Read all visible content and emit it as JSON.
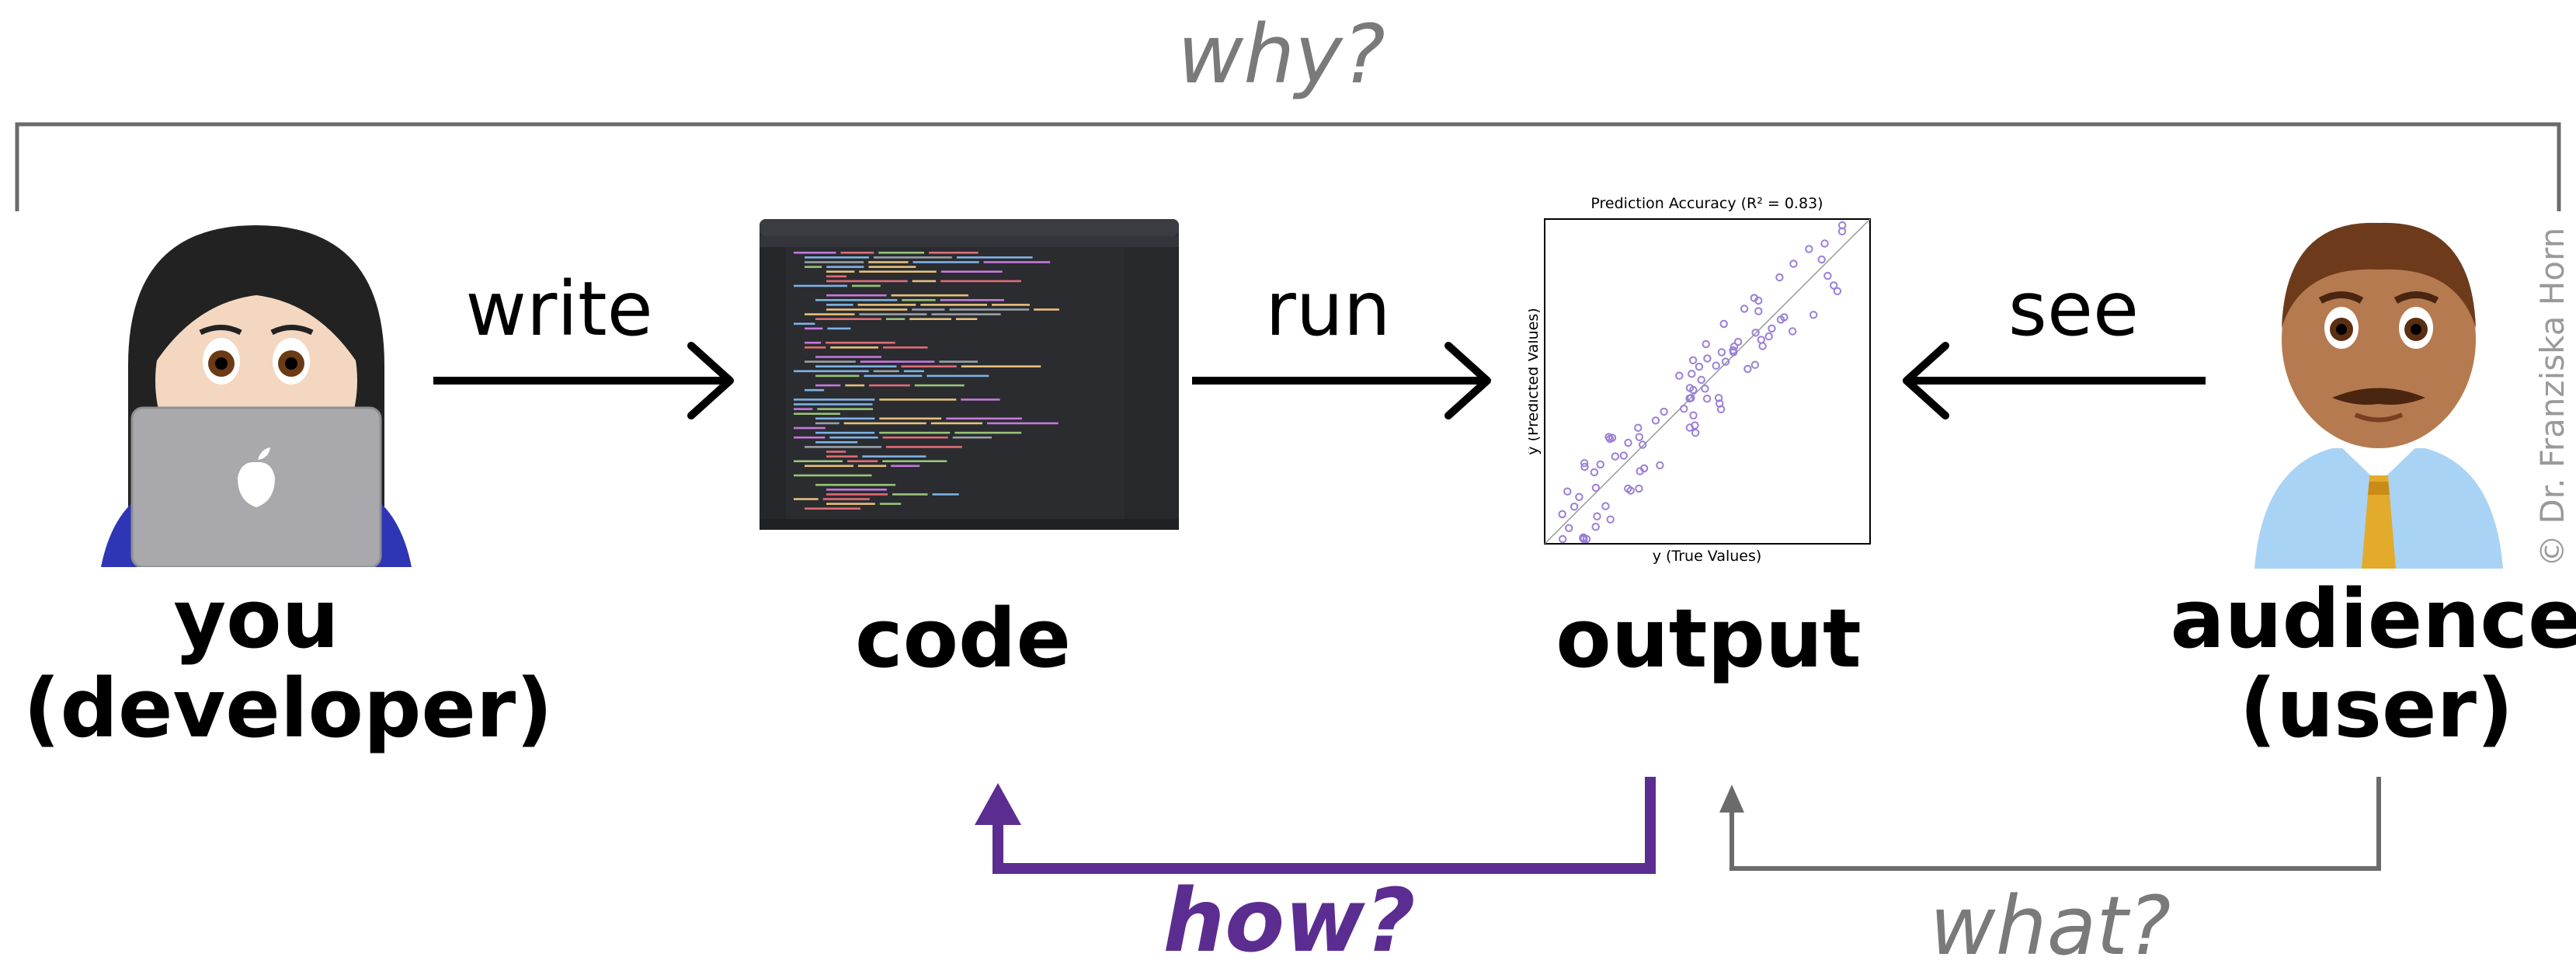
{
  "top_question": "why?",
  "bottom_left_question": "how?",
  "bottom_right_question": "what?",
  "nodes": {
    "developer": {
      "line1": "you",
      "line2": "(developer)"
    },
    "code": {
      "label": "code"
    },
    "output": {
      "label": "output"
    },
    "user": {
      "line1": "audience",
      "line2": "(user)"
    }
  },
  "edges": {
    "write": "write",
    "run": "run",
    "see": "see"
  },
  "plot": {
    "title": "Prediction Accuracy (R² = 0.83)",
    "xlabel": "y (True Values)",
    "ylabel": "ŷ (Predicted Values)"
  },
  "credit": "© Dr. Franziska Horn",
  "colors": {
    "accent_purple": "#5b2d91",
    "gray_line": "#6b6b6b",
    "scatter_point": "#9a7fd6"
  }
}
